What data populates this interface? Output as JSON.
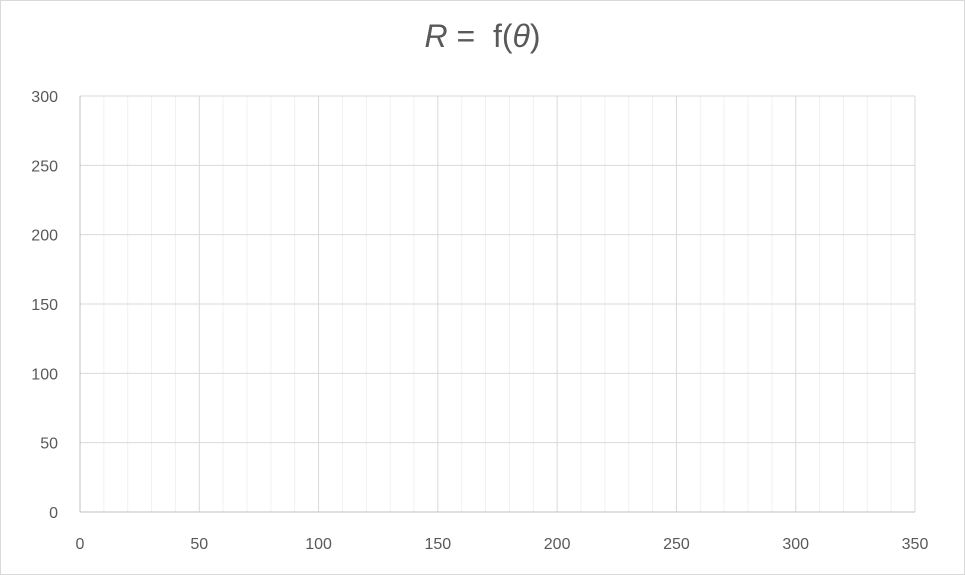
{
  "chart_data": {
    "type": "scatter",
    "title": {
      "var": "R",
      "eq": " =  f(",
      "theta": "θ",
      "close": ")"
    },
    "xlabel": "",
    "ylabel": "",
    "xlim": [
      0,
      350
    ],
    "ylim": [
      0,
      300
    ],
    "x_ticks": [
      0,
      50,
      100,
      150,
      200,
      250,
      300,
      350
    ],
    "y_ticks": [
      0,
      50,
      100,
      150,
      200,
      250,
      300
    ],
    "x_minor_step": 10,
    "grid": true,
    "series": [
      {
        "x": [],
        "y": []
      }
    ],
    "colors": {
      "major_grid": "#d9d9d9",
      "minor_grid": "#f0f0f0",
      "axis": "#bfbfbf",
      "text": "#595959"
    }
  }
}
